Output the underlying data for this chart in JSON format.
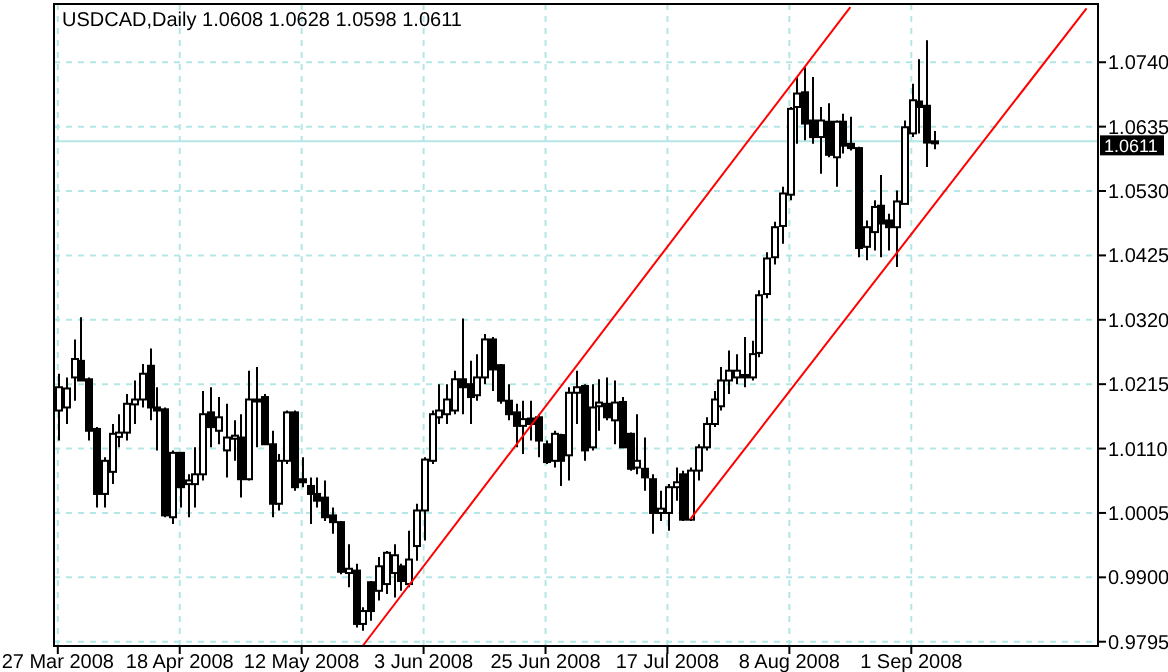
{
  "chart_data": {
    "type": "candlestick",
    "title": "USDCAD,Daily 1.0608 1.0628 1.0598 1.0611",
    "categories": [
      "27 Mar 2008",
      null,
      null,
      null,
      null,
      null,
      null,
      null,
      null,
      null,
      null,
      null,
      null,
      null,
      null,
      null,
      "18 Apr 2008",
      null,
      null,
      null,
      null,
      null,
      null,
      null,
      null,
      null,
      null,
      null,
      null,
      null,
      null,
      null,
      "12 May 2008",
      null,
      null,
      null,
      null,
      null,
      null,
      null,
      null,
      null,
      null,
      null,
      null,
      null,
      null,
      null,
      "3 Jun 2008",
      null,
      null,
      null,
      null,
      null,
      null,
      null,
      null,
      null,
      null,
      null,
      null,
      null,
      null,
      null,
      "25 Jun 2008",
      null,
      null,
      null,
      null,
      null,
      null,
      null,
      null,
      null,
      null,
      null,
      null,
      null,
      null,
      null,
      "17 Jul 2008",
      null,
      null,
      null,
      null,
      null,
      null,
      null,
      null,
      null,
      null,
      null,
      null,
      null,
      null,
      null,
      "8 Aug 2008",
      null,
      null,
      null,
      null,
      null,
      null,
      null,
      null,
      null,
      null,
      null,
      null,
      null,
      null,
      null,
      "1 Sep 2008",
      null,
      null,
      null,
      null,
      null,
      null,
      null,
      null,
      null,
      null,
      null,
      null,
      null,
      null,
      null,
      null,
      null,
      null,
      null,
      null,
      null,
      null,
      null,
      null
    ],
    "ohlc": [
      [
        1.0172,
        1.0232,
        1.0123,
        1.021
      ],
      [
        1.0177,
        1.0226,
        1.015,
        1.0208
      ],
      [
        1.0226,
        1.0288,
        1.0188,
        1.0256
      ],
      [
        1.0253,
        1.0324,
        1.0221,
        1.0221
      ],
      [
        1.0223,
        1.0226,
        1.0123,
        1.0139
      ],
      [
        1.0142,
        1.0145,
        1.0014,
        1.0036
      ],
      [
        1.0036,
        1.0096,
        1.0014,
        1.009
      ],
      [
        1.0072,
        1.015,
        1.0052,
        1.0134
      ],
      [
        1.0129,
        1.0166,
        1.0112,
        1.0136
      ],
      [
        1.0136,
        1.0199,
        1.0123,
        1.0183
      ],
      [
        1.0182,
        1.0221,
        1.015,
        1.019
      ],
      [
        1.019,
        1.0248,
        1.0177,
        1.0232
      ],
      [
        1.0245,
        1.0273,
        1.0156,
        1.0177
      ],
      [
        1.0177,
        1.021,
        1.0107,
        1.0172
      ],
      [
        1.0174,
        1.0177,
        0.9998,
        1.0001
      ],
      [
        0.9998,
        1.0107,
        0.9987,
        1.0103
      ],
      [
        1.0103,
        1.0103,
        1.0014,
        1.0047
      ],
      [
        1.0052,
        1.0068,
        0.9998,
        1.0058
      ],
      [
        1.0052,
        1.0112,
        1.0014,
        1.0068
      ],
      [
        1.0068,
        1.0204,
        1.0058,
        1.0166
      ],
      [
        1.0169,
        1.021,
        1.0112,
        1.0145
      ],
      [
        1.0139,
        1.0194,
        1.0117,
        1.0161
      ],
      [
        1.0107,
        1.0183,
        1.0063,
        1.0128
      ],
      [
        1.0126,
        1.0156,
        1.009,
        1.0131
      ],
      [
        1.0128,
        1.0166,
        1.003,
        1.006
      ],
      [
        1.006,
        1.0237,
        1.0058,
        1.019
      ],
      [
        1.0188,
        1.0243,
        1.0112,
        1.019
      ],
      [
        1.0194,
        1.0199,
        1.0117,
        1.0117
      ],
      [
        1.0117,
        1.0139,
        0.9998,
        1.002
      ],
      [
        1.002,
        1.0101,
        1.0009,
        1.009
      ],
      [
        1.009,
        1.0172,
        1.0085,
        1.0169
      ],
      [
        1.0169,
        1.0172,
        1.0041,
        1.0047
      ],
      [
        1.006,
        1.0096,
        1.0047,
        1.0055
      ],
      [
        1.0049,
        1.0063,
        0.9987,
        1.0036
      ],
      [
        1.0036,
        1.0063,
        1.0014,
        1.0025
      ],
      [
        1.003,
        1.0058,
        0.9992,
        0.9998
      ],
      [
        1.0001,
        1.0014,
        0.9971,
        0.999
      ],
      [
        0.999,
        0.9992,
        0.9905,
        0.9909
      ],
      [
        0.9907,
        0.9954,
        0.9884,
        0.9914
      ],
      [
        0.9911,
        0.9922,
        0.9818,
        0.9824
      ],
      [
        0.9824,
        0.9851,
        0.9813,
        0.9845
      ],
      [
        0.9892,
        0.9894,
        0.9829,
        0.9845
      ],
      [
        0.9878,
        0.9933,
        0.9862,
        0.9918
      ],
      [
        0.9889,
        0.9943,
        0.9873,
        0.994
      ],
      [
        0.9907,
        0.9954,
        0.9867,
        0.9936
      ],
      [
        0.9918,
        0.9922,
        0.9878,
        0.9894
      ],
      [
        0.9889,
        0.9976,
        0.9884,
        0.9929
      ],
      [
        0.9951,
        1.002,
        0.9927,
        1.0009
      ],
      [
        1.0009,
        1.0096,
        0.996,
        1.0092
      ],
      [
        1.009,
        1.0172,
        1.0085,
        1.0166
      ],
      [
        1.0161,
        1.0215,
        1.015,
        1.0172
      ],
      [
        1.0166,
        1.0215,
        1.015,
        1.019
      ],
      [
        1.0172,
        1.0237,
        1.0166,
        1.0223
      ],
      [
        1.0223,
        1.0322,
        1.0166,
        1.021
      ],
      [
        1.0215,
        1.0253,
        1.015,
        1.0194
      ],
      [
        1.0197,
        1.0264,
        1.0188,
        1.0226
      ],
      [
        1.0226,
        1.0297,
        1.0215,
        1.0288
      ],
      [
        1.0288,
        1.0292,
        1.0204,
        1.0239
      ],
      [
        1.0246,
        1.0248,
        1.0183,
        1.0188
      ],
      [
        1.0188,
        1.0215,
        1.0156,
        1.0166
      ],
      [
        1.0169,
        1.0183,
        1.0112,
        1.0147
      ],
      [
        1.0147,
        1.0188,
        1.0101,
        1.0158
      ],
      [
        1.0159,
        1.0188,
        1.0123,
        1.015
      ],
      [
        1.0161,
        1.0166,
        1.0096,
        1.0123
      ],
      [
        1.0117,
        1.0123,
        1.0085,
        1.0088
      ],
      [
        1.009,
        1.0139,
        1.0079,
        1.0134
      ],
      [
        1.0132,
        1.0134,
        1.0049,
        1.009
      ],
      [
        1.0099,
        1.021,
        1.0058,
        1.0201
      ],
      [
        1.0201,
        1.0237,
        1.015,
        1.021
      ],
      [
        1.0212,
        1.0215,
        1.009,
        1.0107
      ],
      [
        1.0112,
        1.0215,
        1.0107,
        1.0177
      ],
      [
        1.0179,
        1.0223,
        1.0139,
        1.0185
      ],
      [
        1.0183,
        1.0226,
        1.0156,
        1.0161
      ],
      [
        1.0156,
        1.0221,
        1.0117,
        1.0185
      ],
      [
        1.0186,
        1.0194,
        1.0112,
        1.0112
      ],
      [
        1.0134,
        1.0136,
        1.0074,
        1.0077
      ],
      [
        1.0079,
        1.0166,
        1.0068,
        1.009
      ],
      [
        1.0077,
        1.0128,
        1.0041,
        1.0063
      ],
      [
        1.006,
        1.0068,
        0.9971,
        1.0005
      ],
      [
        1.0005,
        1.0041,
        0.9992,
        1.0012
      ],
      [
        1.0005,
        1.0052,
        0.9976,
        1.0047
      ],
      [
        1.0047,
        1.0079,
        1.0025,
        1.0055
      ],
      [
        1.0068,
        1.0074,
        0.9992,
        0.9994
      ],
      [
        0.9994,
        1.0079,
        0.9992,
        1.0074
      ],
      [
        1.0074,
        1.0117,
        1.0058,
        1.0112
      ],
      [
        1.0112,
        1.0161,
        1.0107,
        1.015
      ],
      [
        1.015,
        1.0204,
        1.0145,
        1.019
      ],
      [
        1.0179,
        1.0243,
        1.0172,
        1.0221
      ],
      [
        1.0221,
        1.027,
        1.0199,
        1.0237
      ],
      [
        1.0226,
        1.0264,
        1.0215,
        1.0237
      ],
      [
        1.023,
        1.0292,
        1.021,
        1.0226
      ],
      [
        1.0226,
        1.0286,
        1.0221,
        1.0264
      ],
      [
        1.0266,
        1.0368,
        1.0259,
        1.036
      ],
      [
        1.0362,
        1.043,
        1.0355,
        1.042
      ],
      [
        1.0422,
        1.048,
        1.041,
        1.0471
      ],
      [
        1.0473,
        1.0537,
        1.0444,
        1.0526
      ],
      [
        1.0524,
        1.0667,
        1.0515,
        1.0664
      ],
      [
        1.0667,
        1.0716,
        1.0607,
        1.0689
      ],
      [
        1.0691,
        1.0732,
        1.0613,
        1.064
      ],
      [
        1.0645,
        1.0716,
        1.0607,
        1.0618
      ],
      [
        1.0618,
        1.0667,
        1.0558,
        1.0645
      ],
      [
        1.0643,
        1.0673,
        1.0585,
        1.0589
      ],
      [
        1.0585,
        1.0645,
        1.0537,
        1.0643
      ],
      [
        1.0643,
        1.0656,
        1.0591,
        1.0604
      ],
      [
        1.0607,
        1.0651,
        1.0596,
        1.06
      ],
      [
        1.06,
        1.0602,
        1.0422,
        1.0437
      ],
      [
        1.0439,
        1.0482,
        1.0417,
        1.0471
      ],
      [
        1.0463,
        1.0515,
        1.0433,
        1.0504
      ],
      [
        1.0506,
        1.0556,
        1.0422,
        1.0477
      ],
      [
        1.0482,
        1.0493,
        1.0433,
        1.0471
      ],
      [
        1.0471,
        1.0531,
        1.0406,
        1.0513
      ],
      [
        1.0509,
        1.0645,
        1.0509,
        1.0634
      ],
      [
        1.0624,
        1.0705,
        1.0618,
        1.0678
      ],
      [
        1.0676,
        1.0745,
        1.0624,
        1.0667
      ],
      [
        1.0669,
        1.0776,
        1.0569,
        1.0609
      ],
      [
        1.0608,
        1.0628,
        1.0598,
        1.0611
      ],
      null,
      null,
      null,
      null,
      null,
      null,
      null,
      null,
      null,
      null,
      null,
      null,
      null,
      null,
      null,
      null,
      null,
      null,
      null,
      null,
      null
    ],
    "series": [
      {
        "type": "line",
        "color": "#ff0000",
        "values": [
          null,
          null,
          null,
          null,
          null,
          null,
          null,
          null,
          null,
          null,
          null,
          null,
          null,
          null,
          null,
          null,
          null,
          null,
          null,
          null,
          null,
          null,
          null,
          null,
          null,
          null,
          null,
          null,
          null,
          null,
          null,
          null,
          null,
          null,
          null,
          null,
          null,
          null,
          null,
          null,
          0.9788,
          null,
          null,
          null,
          null,
          null,
          null,
          null,
          null,
          null,
          null,
          null,
          null,
          null,
          null,
          null,
          null,
          null,
          null,
          null,
          null,
          null,
          null,
          null,
          null,
          null,
          null,
          null,
          null,
          null,
          null,
          null,
          null,
          null,
          null,
          null,
          null,
          null,
          null,
          null,
          null,
          null,
          null,
          null,
          null,
          null,
          null,
          null,
          null,
          null,
          null,
          null,
          null,
          null,
          null,
          null,
          null,
          null,
          null,
          null,
          null,
          null,
          null,
          null,
          1.083,
          null,
          null,
          null,
          null,
          null,
          null,
          null,
          null,
          null,
          null,
          null,
          null,
          null,
          null,
          null,
          null,
          null,
          null,
          null,
          null,
          null,
          null,
          null,
          null,
          null,
          null,
          null,
          null,
          null,
          null,
          null,
          null
        ]
      },
      {
        "type": "line",
        "color": "#ff0000",
        "values": [
          null,
          null,
          null,
          null,
          null,
          null,
          null,
          null,
          null,
          null,
          null,
          null,
          null,
          null,
          null,
          null,
          null,
          null,
          null,
          null,
          null,
          null,
          null,
          null,
          null,
          null,
          null,
          null,
          null,
          null,
          null,
          null,
          null,
          null,
          null,
          null,
          null,
          null,
          null,
          null,
          null,
          null,
          null,
          null,
          null,
          null,
          null,
          null,
          null,
          null,
          null,
          null,
          null,
          null,
          null,
          null,
          null,
          null,
          null,
          null,
          null,
          null,
          null,
          null,
          null,
          null,
          null,
          null,
          null,
          null,
          null,
          null,
          null,
          null,
          null,
          null,
          null,
          null,
          null,
          null,
          null,
          null,
          null,
          0.9995,
          null,
          null,
          null,
          null,
          null,
          null,
          null,
          null,
          null,
          null,
          null,
          null,
          null,
          null,
          null,
          null,
          null,
          null,
          null,
          null,
          null,
          null,
          null,
          null,
          null,
          null,
          null,
          null,
          null,
          null,
          null,
          null,
          null,
          null,
          null,
          null,
          null,
          null,
          null,
          null,
          null,
          null,
          null,
          null,
          null,
          null,
          null,
          null,
          null,
          null,
          null,
          1.0828,
          null
        ]
      }
    ],
    "ylim": [
      0.9788,
      1.0835
    ],
    "yticks": [
      0.9795,
      {
        "value": 0.99,
        "label": "0.9900"
      },
      1.0005,
      {
        "value": 1.011,
        "label": "1.0110"
      },
      1.0215,
      {
        "value": 1.032,
        "label": "1.0320"
      },
      1.0425,
      {
        "value": 1.053,
        "label": "1.0530"
      },
      1.0635,
      {
        "value": 1.074,
        "label": "1.0740"
      }
    ],
    "ref_lines": [
      {
        "axis": "y",
        "value": 1.0611,
        "label": "1.0611",
        "color": "#b4e6e6"
      }
    ],
    "grid": true
  }
}
